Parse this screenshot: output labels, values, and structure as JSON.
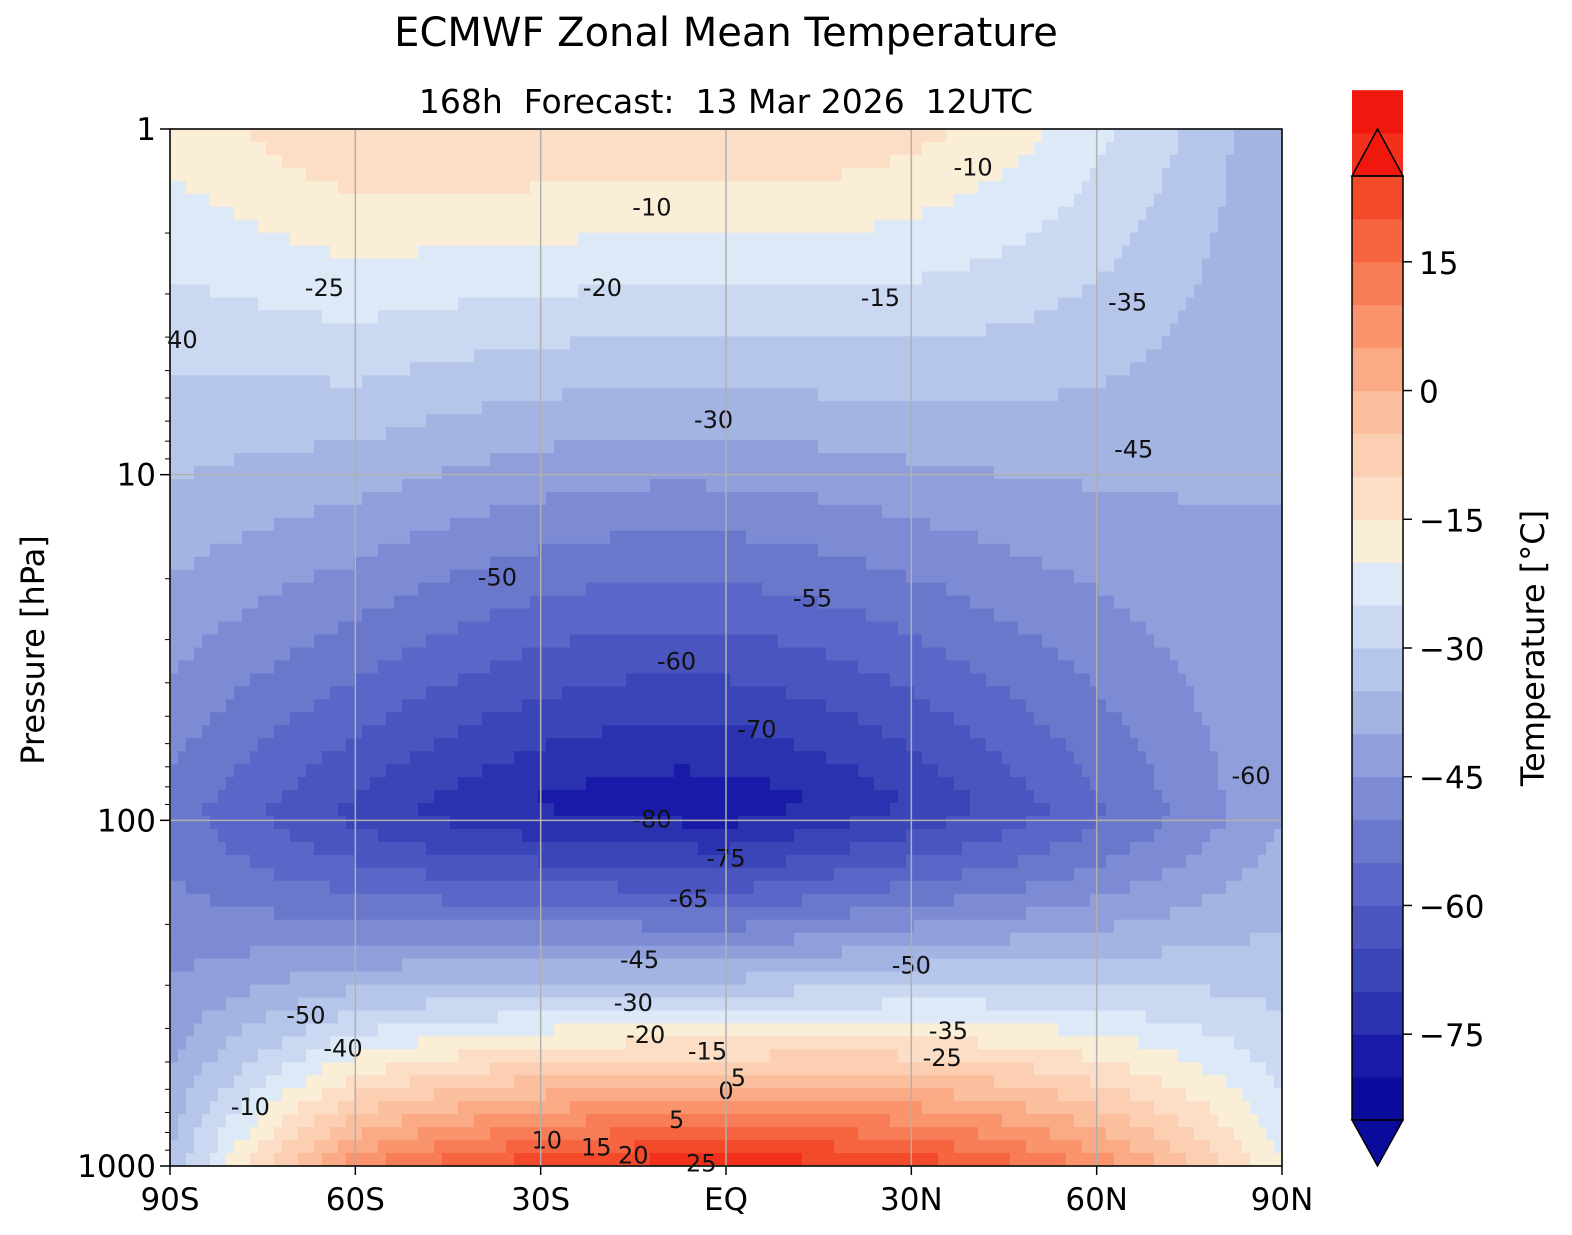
{
  "chart_data": {
    "type": "contour",
    "title": "ECMWF Zonal Mean Temperature",
    "subtitle": "168h  Forecast:  13 Mar 2026  12UTC",
    "xlabel": "",
    "ylabel": "Pressure [hPa]",
    "x_ticks": [
      "90S",
      "60S",
      "30S",
      "EQ",
      "30N",
      "60N",
      "90N"
    ],
    "x_range": [
      -90,
      90
    ],
    "y_scale": "log",
    "y_range": [
      1000,
      1
    ],
    "y_ticks": [
      "1",
      "10",
      "100",
      "1000"
    ],
    "grid": true,
    "colorbar": {
      "label": "Temperature [°C]",
      "range": [
        -85,
        25
      ],
      "level_step": 5,
      "ticks": [
        "15",
        "0",
        "−15",
        "−30",
        "−45",
        "−60",
        "−75"
      ],
      "colors": [
        "#0a0a9c",
        "#1a1aa8",
        "#2a32b0",
        "#3a46b8",
        "#4a55c0",
        "#5a66c8",
        "#6a78cc",
        "#7c8bd4",
        "#909fdc",
        "#a3b3e2",
        "#b6c6ea",
        "#cad8f1",
        "#dde9f7",
        "#fbeed6",
        "#fcdec6",
        "#fccfb3",
        "#fbbf9d",
        "#faaa85",
        "#f9946c",
        "#f87c55",
        "#f66440",
        "#f44a2c",
        "#f2301c",
        "#f0180e"
      ],
      "extend": "both"
    },
    "contour_labels": [
      {
        "value": "-10",
        "lat": -12,
        "p": 1.7
      },
      {
        "value": "-10",
        "lat": 40,
        "p": 1.3
      },
      {
        "value": "-25",
        "lat": -65,
        "p": 2.9
      },
      {
        "value": "-20",
        "lat": -20,
        "p": 2.9
      },
      {
        "value": "-15",
        "lat": 25,
        "p": 3.1
      },
      {
        "value": "-35",
        "lat": 65,
        "p": 3.2
      },
      {
        "value": "40",
        "lat": -88,
        "p": 4.1
      },
      {
        "value": "-30",
        "lat": -2,
        "p": 7.0
      },
      {
        "value": "-45",
        "lat": 66,
        "p": 8.5
      },
      {
        "value": "-50",
        "lat": -37,
        "p": 20
      },
      {
        "value": "-55",
        "lat": 14,
        "p": 23
      },
      {
        "value": "-60",
        "lat": -8,
        "p": 35
      },
      {
        "value": "-70",
        "lat": 5,
        "p": 55
      },
      {
        "value": "-80",
        "lat": -12,
        "p": 100
      },
      {
        "value": "-75",
        "lat": 0,
        "p": 130
      },
      {
        "value": "-65",
        "lat": -6,
        "p": 170
      },
      {
        "value": "-60",
        "lat": 85,
        "p": 75
      },
      {
        "value": "-45",
        "lat": -14,
        "p": 255
      },
      {
        "value": "-50",
        "lat": 30,
        "p": 265
      },
      {
        "value": "-50",
        "lat": -68,
        "p": 370
      },
      {
        "value": "-30",
        "lat": -15,
        "p": 340
      },
      {
        "value": "-35",
        "lat": 36,
        "p": 410
      },
      {
        "value": "-40",
        "lat": -62,
        "p": 460
      },
      {
        "value": "-20",
        "lat": -13,
        "p": 420
      },
      {
        "value": "-15",
        "lat": -3,
        "p": 470
      },
      {
        "value": "-25",
        "lat": 35,
        "p": 490
      },
      {
        "value": "5",
        "lat": 2,
        "p": 560
      },
      {
        "value": "0",
        "lat": 0,
        "p": 610
      },
      {
        "value": "-10",
        "lat": -77,
        "p": 680
      },
      {
        "value": "5",
        "lat": -8,
        "p": 740
      },
      {
        "value": "10",
        "lat": -29,
        "p": 850
      },
      {
        "value": "15",
        "lat": -21,
        "p": 890
      },
      {
        "value": "20",
        "lat": -15,
        "p": 940
      },
      {
        "value": "25",
        "lat": -4,
        "p": 990
      }
    ]
  }
}
